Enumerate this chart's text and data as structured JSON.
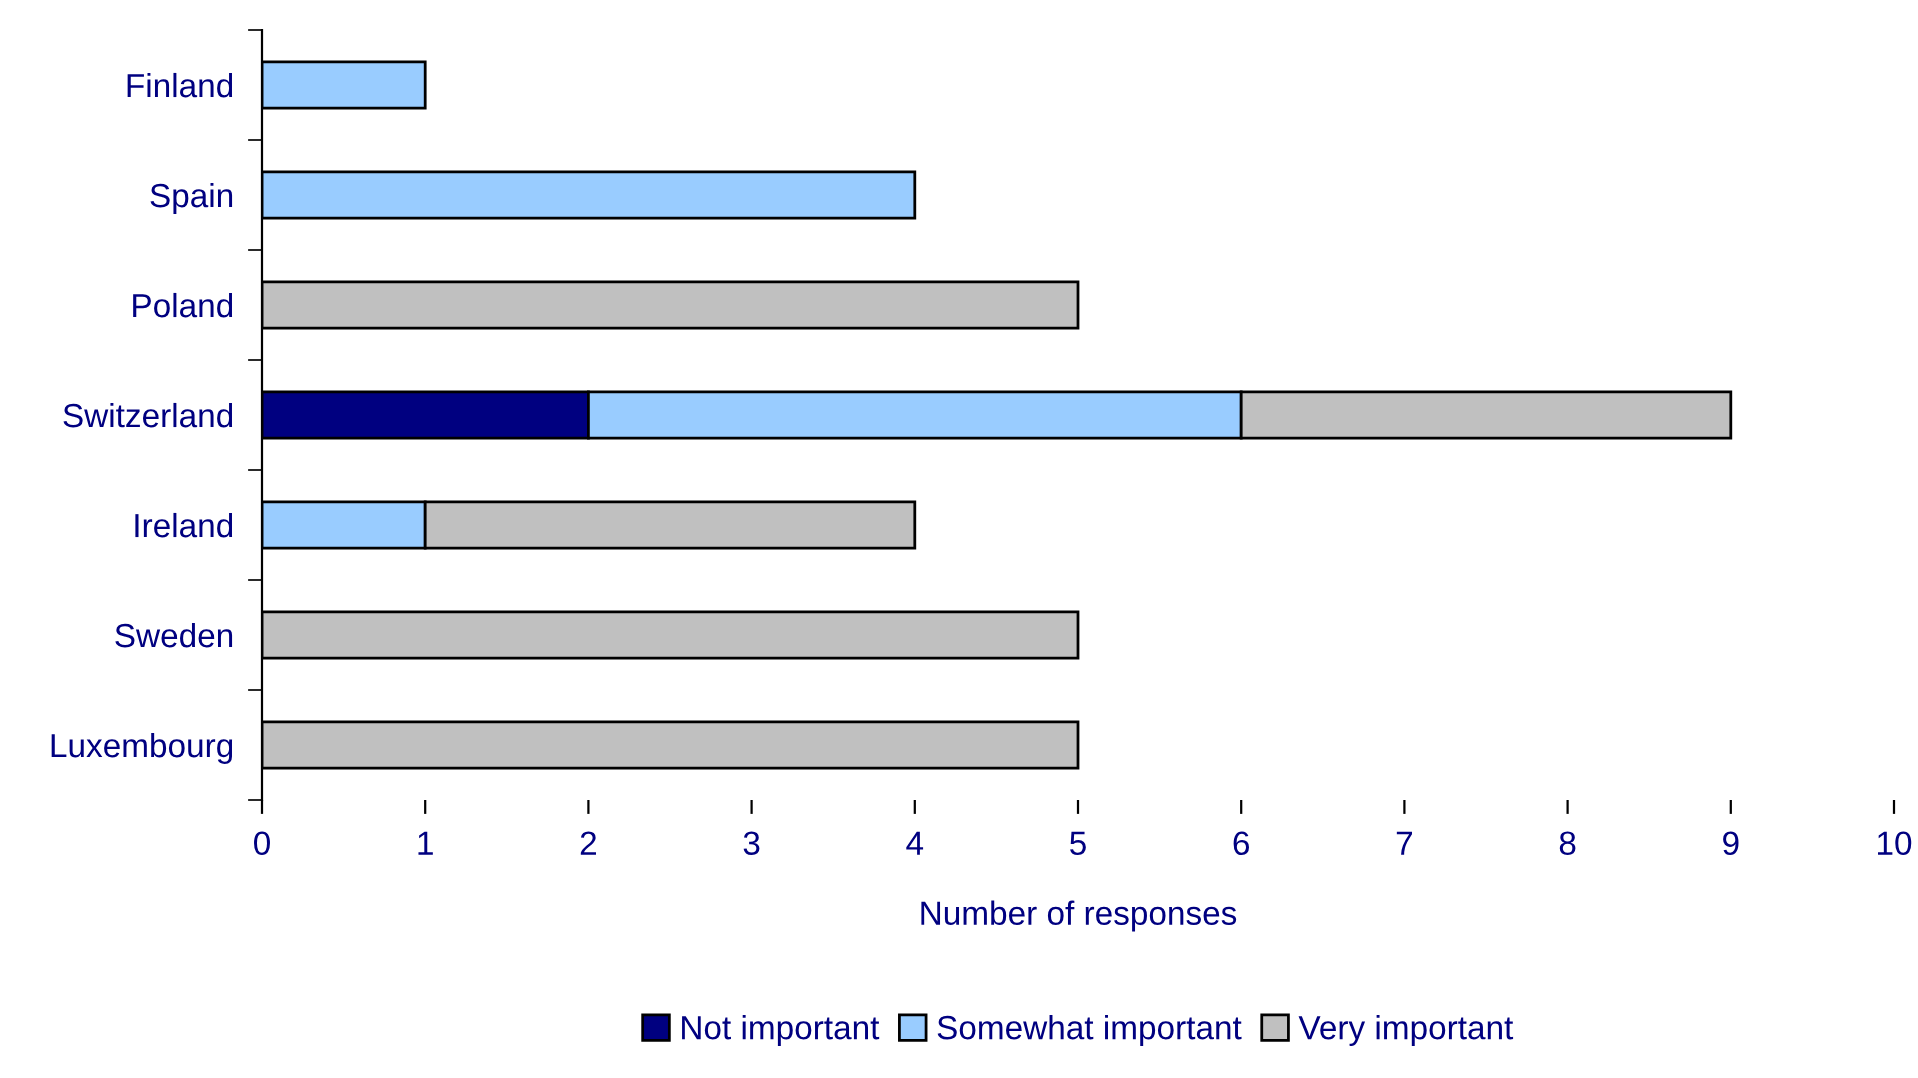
{
  "chart_data": {
    "type": "bar",
    "orientation": "horizontal",
    "stacked": true,
    "xlabel": "Number of responses",
    "categories": [
      "Finland",
      "Spain",
      "Poland",
      "Switzerland",
      "Ireland",
      "Sweden",
      "Luxembourg"
    ],
    "series": [
      {
        "name": "Not important",
        "color": "#000080",
        "values": [
          0,
          0,
          0,
          2,
          0,
          0,
          0
        ]
      },
      {
        "name": "Somewhat important",
        "color": "#99ccff",
        "values": [
          1,
          4,
          0,
          4,
          1,
          0,
          0
        ]
      },
      {
        "name": "Very important",
        "color": "#c0c0c0",
        "values": [
          0,
          0,
          5,
          3,
          3,
          5,
          5
        ]
      }
    ],
    "xlim": [
      0,
      10
    ],
    "xticks": [
      0,
      1,
      2,
      3,
      4,
      5,
      6,
      7,
      8,
      9,
      10
    ],
    "grid": false,
    "legend": "bottom"
  }
}
